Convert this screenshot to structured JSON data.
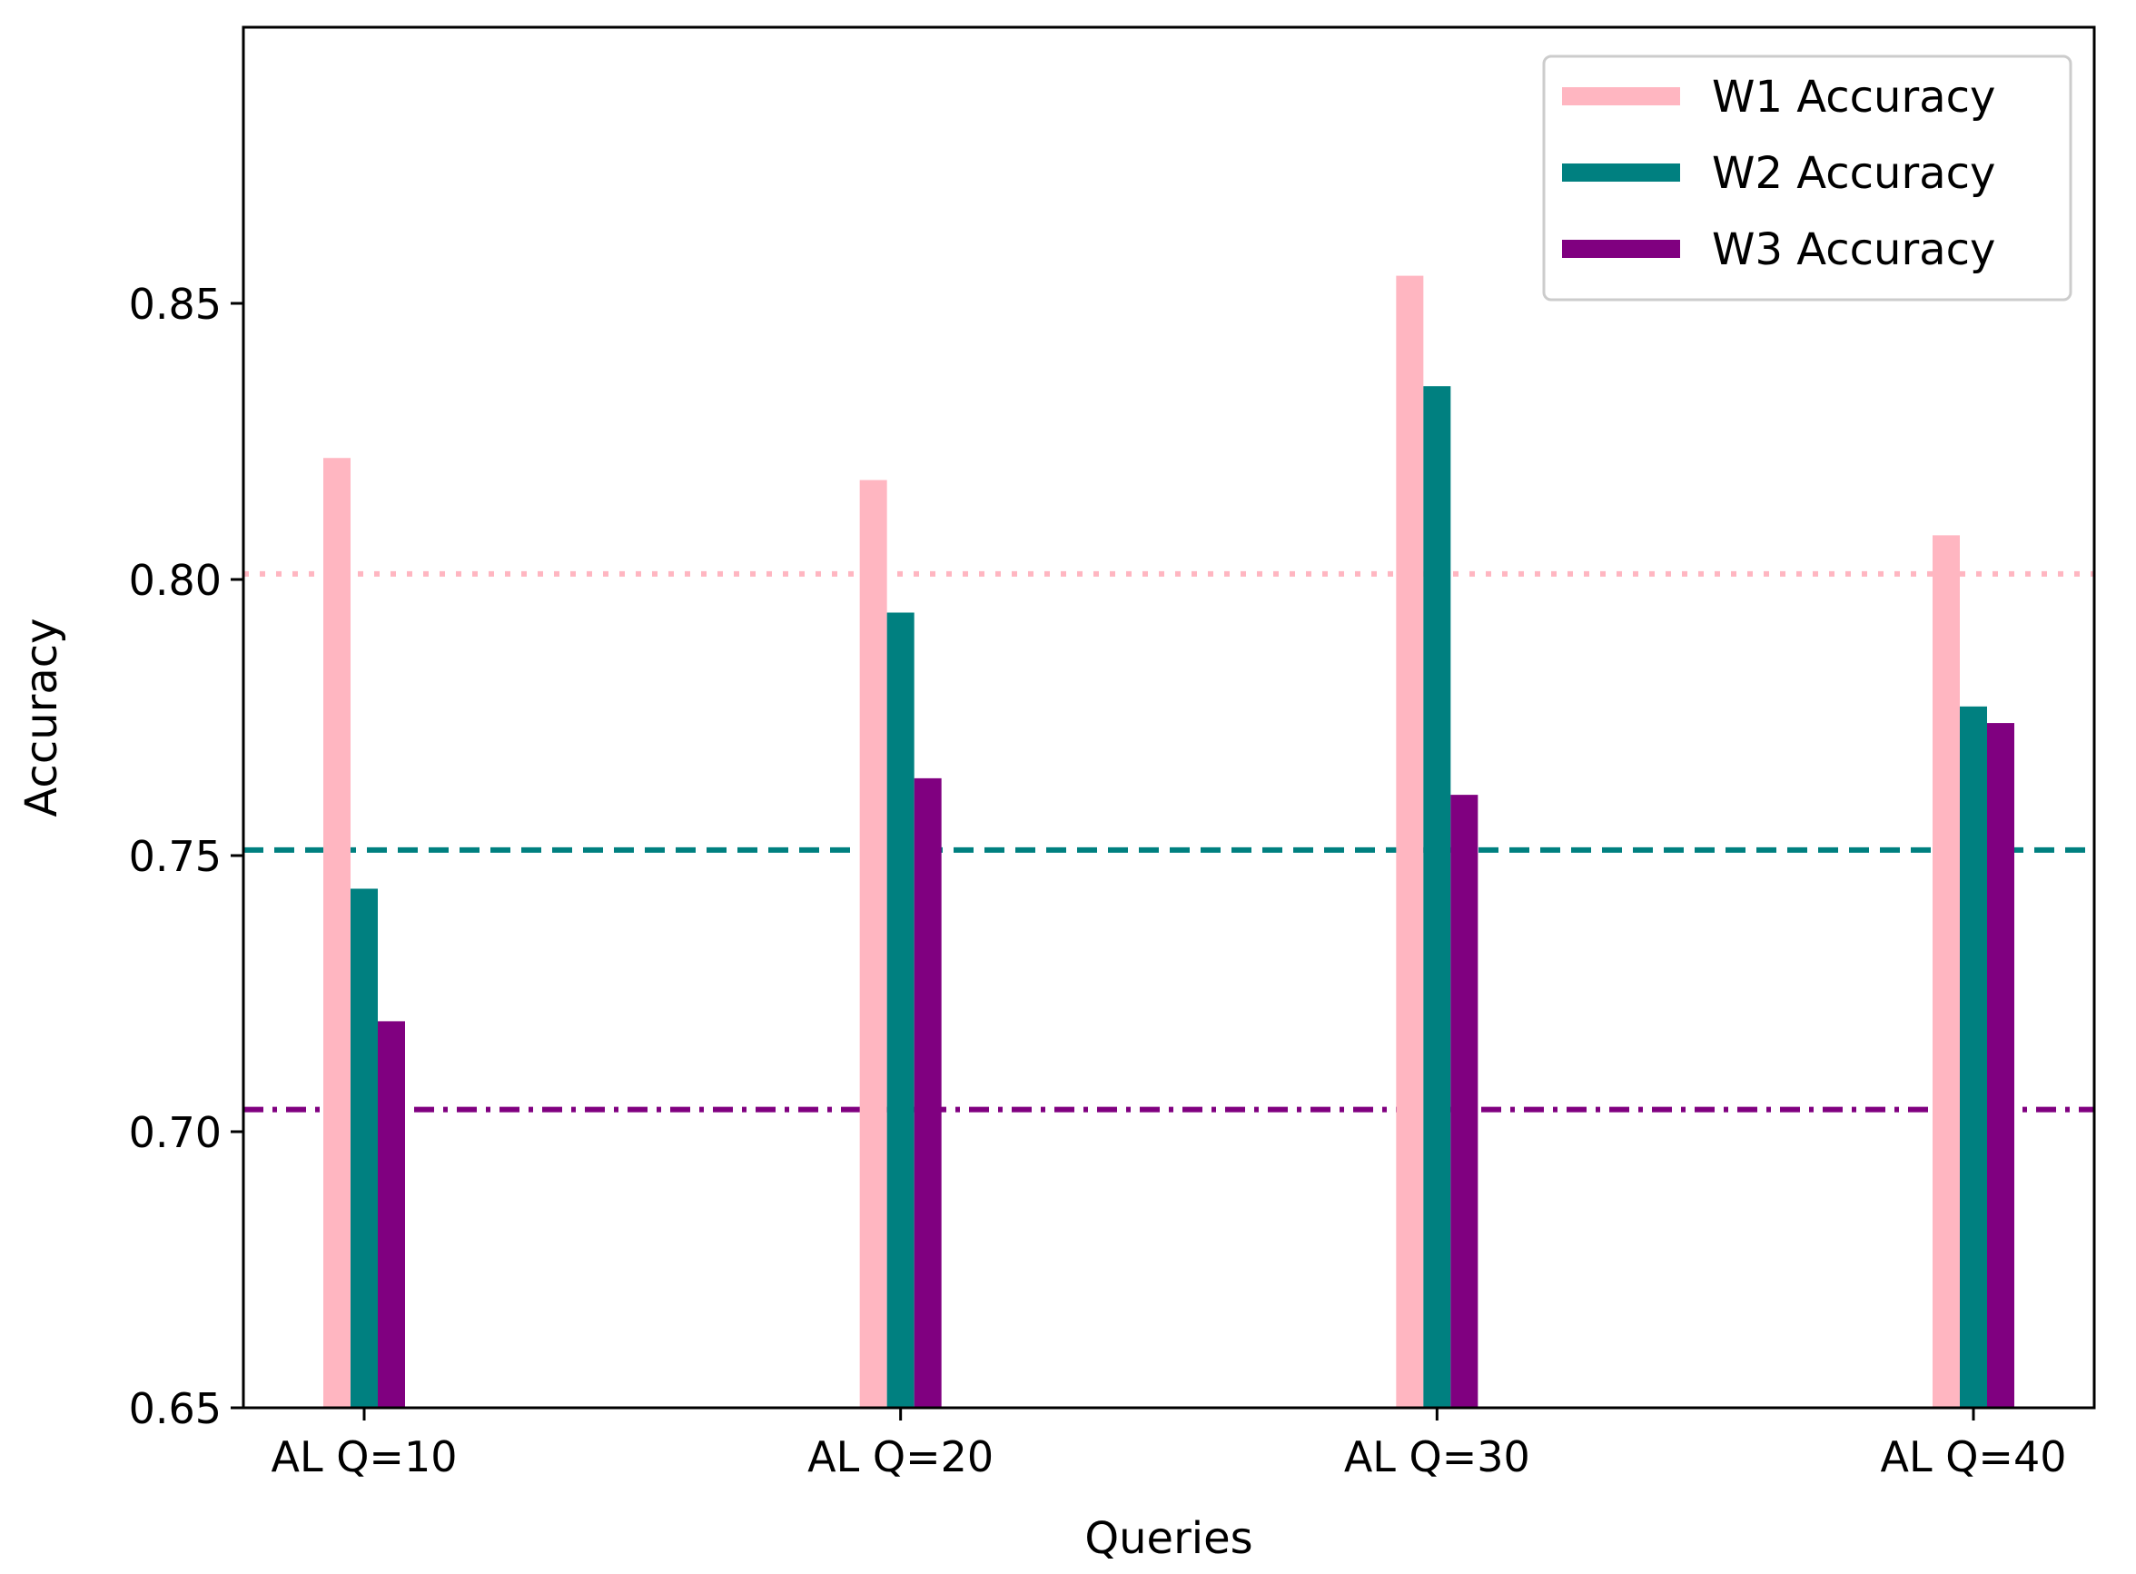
{
  "chart_data": {
    "type": "bar",
    "title": "",
    "xlabel": "Queries",
    "ylabel": "Accuracy",
    "categories": [
      "AL Q=10",
      "AL Q=20",
      "AL Q=30",
      "AL Q=40"
    ],
    "ylim": [
      0.65,
      0.9
    ],
    "yticks": [
      0.65,
      0.7,
      0.75,
      0.8,
      0.85
    ],
    "ytick_labels": [
      "0.65",
      "0.70",
      "0.75",
      "0.80",
      "0.85"
    ],
    "grid": false,
    "legend_position": "top-right",
    "series": [
      {
        "name": "W1 Accuracy",
        "color": "#ffb6c1",
        "values": [
          0.822,
          0.818,
          0.855,
          0.808
        ]
      },
      {
        "name": "W2 Accuracy",
        "color": "#008080",
        "values": [
          0.744,
          0.794,
          0.835,
          0.777
        ]
      },
      {
        "name": "W3 Accuracy",
        "color": "#800080",
        "values": [
          0.72,
          0.764,
          0.761,
          0.774
        ]
      }
    ],
    "reference_lines": [
      {
        "series": "W1 Accuracy",
        "value": 0.801,
        "style": "dotted",
        "color": "#ffb6c1"
      },
      {
        "series": "W2 Accuracy",
        "value": 0.751,
        "style": "dashed",
        "color": "#008080"
      },
      {
        "series": "W3 Accuracy",
        "value": 0.704,
        "style": "dashdot",
        "color": "#800080"
      }
    ]
  }
}
